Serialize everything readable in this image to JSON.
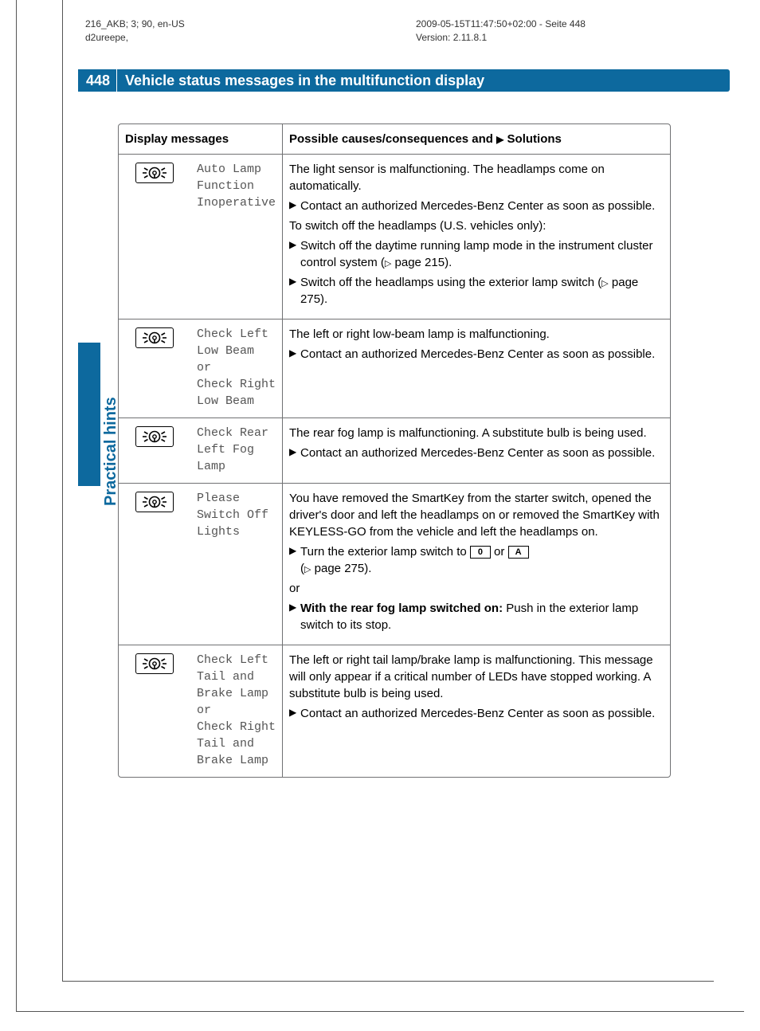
{
  "meta": {
    "left_line1": "216_AKB; 3; 90, en-US",
    "left_line2": "d2ureepe,",
    "right_line1": "2009-05-15T11:47:50+02:00 - Seite 448",
    "right_line2": "Version: 2.11.8.1"
  },
  "header": {
    "page_num": "448",
    "title": "Vehicle status messages in the multifunction display"
  },
  "side_label": "Practical hints",
  "colors": {
    "brand_blue": "#0d699e",
    "border_gray": "#707173",
    "mono_gray": "#555555"
  },
  "table": {
    "col1_header": "Display messages",
    "col3_header_prefix": "Possible causes/consequences and",
    "col3_header_suffix": "Solutions",
    "rows": [
      {
        "icon": "lamp",
        "message": "Auto Lamp Function Inoperative",
        "solution": {
          "intro": "The light sensor is malfunctioning. The headlamps come on automatically.",
          "bullets1": [
            "Contact an authorized Mercedes-Benz Center as soon as possible."
          ],
          "mid": "To switch off the headlamps (U.S. vehicles only):",
          "bullets2": [
            {
              "pre": "Switch off the daytime running lamp mode in the instrument cluster control system (",
              "ref": "page 215",
              "post": ")."
            },
            {
              "pre": "Switch off the headlamps using the exterior lamp switch (",
              "ref": "page 275",
              "post": ")."
            }
          ]
        }
      },
      {
        "icon": "lamp",
        "message": "Check Left Low Beam\nor\nCheck Right Low Beam",
        "solution": {
          "intro": "The left or right low-beam lamp is malfunctioning.",
          "bullets1": [
            "Contact an authorized Mercedes-Benz Center as soon as possible."
          ]
        }
      },
      {
        "icon": "lamp",
        "message": "Check Rear Left Fog Lamp",
        "solution": {
          "intro": "The rear fog lamp is malfunctioning. A substitute bulb is being used.",
          "bullets1": [
            "Contact an authorized Mercedes-Benz Center as soon as possible."
          ]
        }
      },
      {
        "icon": "lamp",
        "message": "Please Switch Off Lights",
        "solution": {
          "intro": "You have removed the SmartKey from the starter switch, opened the driver's door and left the headlamps on or removed the SmartKey with KEYLESS-GO from the vehicle and left the headlamps on.",
          "switch_line_pre": "Turn the exterior lamp switch to ",
          "switch_sym1": "0",
          "switch_or": " or ",
          "switch_sym2": "A",
          "switch_ref_pre": "(",
          "switch_ref": "page 275",
          "switch_ref_post": ").",
          "or_text": "or",
          "bold_tail_lead": "With the rear fog lamp switched on:",
          "bold_tail_rest": " Push in the exterior lamp switch to its stop."
        }
      },
      {
        "icon": "lamp",
        "message": "Check Left Tail and Brake Lamp\nor\nCheck Right Tail and Brake Lamp",
        "solution": {
          "intro": "The left or right tail lamp/brake lamp is malfunctioning. This message will only appear if a critical number of LEDs have stopped working. A substitute bulb is being used.",
          "bullets1": [
            "Contact an authorized Mercedes-Benz Center as soon as possible."
          ]
        }
      }
    ]
  }
}
